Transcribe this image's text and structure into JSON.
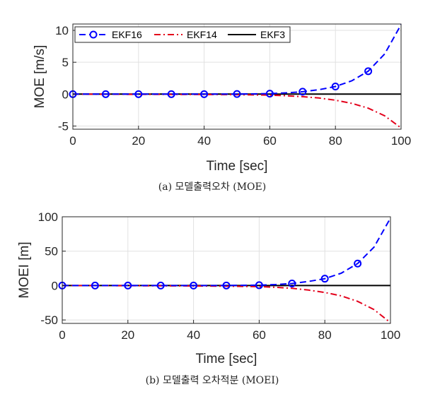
{
  "chart_data": [
    {
      "type": "line",
      "xlabel": "Time [sec]",
      "ylabel": "MOE [m/s]",
      "caption": "(a) 모델출력오차 (MOE)",
      "xlim": [
        0,
        100
      ],
      "ylim": [
        -5.5,
        11
      ],
      "xticks": [
        0,
        20,
        40,
        60,
        80,
        100
      ],
      "yticks": [
        -5,
        0,
        5,
        10
      ],
      "grid": true,
      "legend": {
        "position": "top",
        "orientation": "horizontal"
      },
      "series": [
        {
          "name": "EKF16",
          "color": "#0000ff",
          "style": "dashed",
          "marker": "o",
          "x": [
            0,
            10,
            20,
            30,
            40,
            50,
            60,
            65,
            70,
            75,
            80,
            85,
            90,
            95,
            100
          ],
          "y": [
            0,
            0,
            0,
            0,
            0,
            0.02,
            0.08,
            0.2,
            0.38,
            0.7,
            1.2,
            2.1,
            3.6,
            6.3,
            10.9
          ],
          "markers_x": [
            0,
            10,
            20,
            30,
            40,
            50,
            60,
            70,
            80,
            90
          ]
        },
        {
          "name": "EKF14",
          "color": "#e3001b",
          "style": "dashdot",
          "marker": "",
          "x": [
            0,
            10,
            20,
            30,
            40,
            50,
            60,
            65,
            70,
            75,
            80,
            85,
            90,
            95,
            100
          ],
          "y": [
            0,
            -0.02,
            -0.03,
            -0.04,
            -0.05,
            -0.08,
            -0.15,
            -0.25,
            -0.4,
            -0.6,
            -0.95,
            -1.45,
            -2.2,
            -3.4,
            -5.3
          ]
        },
        {
          "name": "EKF3",
          "color": "#000000",
          "style": "solid",
          "marker": "",
          "x": [
            0,
            100
          ],
          "y": [
            0,
            0
          ]
        }
      ]
    },
    {
      "type": "line",
      "xlabel": "Time [sec]",
      "ylabel": "MOEI [m]",
      "caption": "(b) 모델출력 오차적분 (MOEI)",
      "xlim": [
        0,
        100
      ],
      "ylim": [
        -55,
        100
      ],
      "xticks": [
        0,
        20,
        40,
        60,
        80,
        100
      ],
      "yticks": [
        -50,
        0,
        50,
        100
      ],
      "grid": true,
      "series": [
        {
          "name": "EKF16",
          "color": "#0000ff",
          "style": "dashed",
          "marker": "o",
          "x": [
            0,
            10,
            20,
            30,
            40,
            50,
            60,
            65,
            70,
            75,
            80,
            85,
            90,
            95,
            100
          ],
          "y": [
            0,
            0,
            0,
            0,
            0,
            0.1,
            0.5,
            1.5,
            3,
            6,
            10,
            18,
            32,
            56,
            98
          ],
          "markers_x": [
            0,
            10,
            20,
            30,
            40,
            50,
            60,
            70,
            80,
            90
          ]
        },
        {
          "name": "EKF14",
          "color": "#e3001b",
          "style": "dashdot",
          "marker": "",
          "x": [
            0,
            10,
            20,
            30,
            40,
            50,
            60,
            65,
            70,
            75,
            80,
            85,
            90,
            95,
            100
          ],
          "y": [
            0,
            -0.1,
            -0.2,
            -0.4,
            -0.6,
            -0.9,
            -1.5,
            -2.5,
            -4,
            -6.5,
            -10,
            -15,
            -23,
            -35,
            -54
          ]
        },
        {
          "name": "EKF3",
          "color": "#000000",
          "style": "solid",
          "marker": "",
          "x": [
            0,
            100
          ],
          "y": [
            0,
            0
          ]
        }
      ]
    }
  ]
}
